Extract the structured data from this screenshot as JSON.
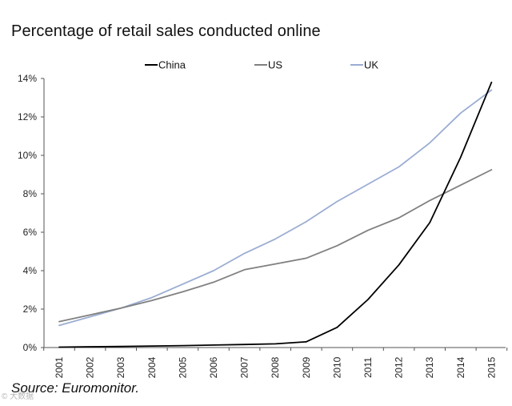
{
  "header": {
    "title": "Percentage of retail sales conducted online"
  },
  "footer": {
    "source": "Source: Euromonitor.",
    "watermark": "© 大数据"
  },
  "chart_data": {
    "type": "line",
    "title": "Percentage of retail sales conducted online",
    "xlabel": "",
    "ylabel": "",
    "ylim": [
      0,
      14
    ],
    "yticks": [
      "0%",
      "2%",
      "4%",
      "6%",
      "8%",
      "10%",
      "12%",
      "14%"
    ],
    "ytick_values": [
      0,
      2,
      4,
      6,
      8,
      10,
      12,
      14
    ],
    "categories": [
      "2001",
      "2002",
      "2003",
      "2004",
      "2005",
      "2006",
      "2007",
      "2008",
      "2009",
      "2010",
      "2011",
      "2012",
      "2013",
      "2014",
      "2015"
    ],
    "grid": false,
    "legend": "top",
    "series": [
      {
        "name": "China",
        "color": "#000000",
        "values": [
          0.02,
          0.04,
          0.06,
          0.08,
          0.1,
          0.13,
          0.16,
          0.19,
          0.3,
          1.05,
          2.5,
          4.3,
          6.5,
          9.9,
          13.8
        ]
      },
      {
        "name": "US",
        "color": "#808080",
        "values": [
          1.35,
          1.7,
          2.05,
          2.45,
          2.9,
          3.4,
          4.05,
          4.35,
          4.65,
          5.3,
          6.1,
          6.75,
          7.65,
          8.45,
          9.25
        ]
      },
      {
        "name": "UK",
        "color": "#9badd2",
        "values": [
          1.15,
          1.6,
          2.05,
          2.6,
          3.3,
          4.0,
          4.9,
          5.65,
          6.55,
          7.6,
          8.5,
          9.4,
          10.65,
          12.2,
          13.4
        ]
      }
    ]
  }
}
